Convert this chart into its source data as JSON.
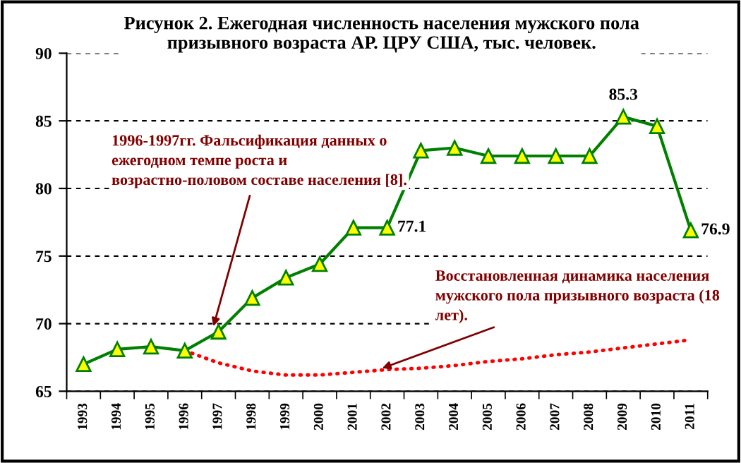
{
  "chart_data": {
    "type": "line",
    "title": "Рисунок 2. Ежегодная численность населения мужского пола призывного возраста АР. ЦРУ США, тыс. человек.",
    "categories": [
      "1993",
      "1994",
      "1995",
      "1996",
      "1997",
      "1998",
      "1999",
      "2000",
      "2001",
      "2002",
      "2003",
      "2004",
      "2005",
      "2006",
      "2007",
      "2008",
      "2009",
      "2010",
      "2011"
    ],
    "series": [
      {
        "color": "#008000",
        "marker": "triangle",
        "line_style": "solid",
        "values": [
          67.0,
          68.1,
          68.3,
          68.0,
          69.4,
          71.9,
          73.4,
          74.4,
          77.1,
          77.1,
          82.8,
          83.0,
          82.4,
          82.4,
          82.4,
          82.4,
          85.3,
          84.6,
          76.9
        ],
        "value_labels": [
          null,
          null,
          null,
          null,
          null,
          null,
          null,
          null,
          null,
          "77.1",
          null,
          null,
          null,
          null,
          null,
          null,
          "85.3",
          null,
          "76.9"
        ]
      },
      {
        "color": "#ff0000",
        "marker": "none",
        "line_style": "dotted",
        "values": [
          null,
          null,
          null,
          68.0,
          67.1,
          66.5,
          66.2,
          66.2,
          66.4,
          66.6,
          66.7,
          66.9,
          67.2,
          67.4,
          67.7,
          67.9,
          68.2,
          68.5,
          68.8
        ]
      }
    ],
    "annotations": [
      {
        "text": "1996-1997гг. Фальсификация данных о ежегодном темпе роста и возрастно-половом составе населения [8].",
        "x": "1997",
        "y": 69.8
      },
      {
        "text": "Восстановленная динамика населения мужского пола призывного возраста (18 лет).",
        "x": "2002",
        "y": 66.7
      }
    ],
    "ylim": [
      65,
      90
    ],
    "yticks": [
      65,
      70,
      75,
      80,
      85,
      90
    ],
    "grid": "y",
    "legend": false
  }
}
